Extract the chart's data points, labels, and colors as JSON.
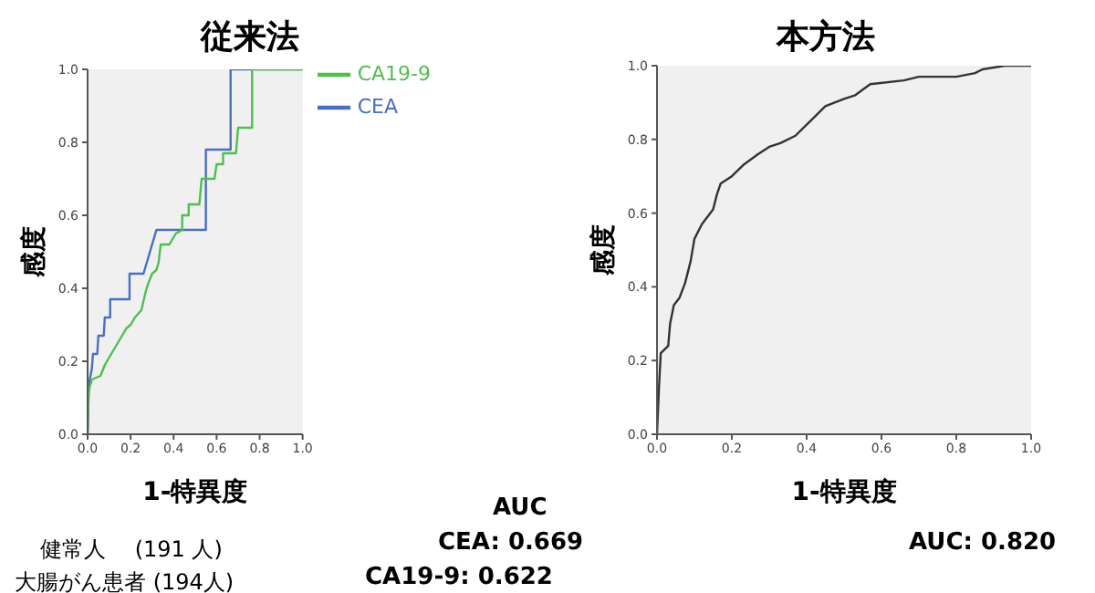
{
  "chart_data": [
    {
      "type": "line",
      "title": "従来法",
      "xlabel": "1-特異度",
      "ylabel": "感度",
      "xlim": [
        0,
        1
      ],
      "ylim": [
        0,
        1
      ],
      "xticks": [
        {
          "value": 0,
          "label": "0.0"
        },
        {
          "value": 0.2,
          "label": "0.2"
        },
        {
          "value": 0.4,
          "label": "0.4"
        },
        {
          "value": 0.6,
          "label": "0.6"
        },
        {
          "value": 0.8,
          "label": "0.8"
        },
        {
          "value": 1,
          "label": "1.0"
        }
      ],
      "yticks": [
        {
          "value": 0,
          "label": "0.0"
        },
        {
          "value": 0.2,
          "label": "0.2"
        },
        {
          "value": 0.4,
          "label": "0.4"
        },
        {
          "value": 0.6,
          "label": "0.6"
        },
        {
          "value": 0.8,
          "label": "0.8"
        },
        {
          "value": 1,
          "label": "1.0"
        }
      ],
      "grid": false,
      "legend": "top right",
      "marker": "none",
      "line_style": "solid",
      "series": [
        {
          "name": "CEA",
          "color": "#4a6fbf",
          "x": [
            0,
            0.005,
            0.01,
            0.02,
            0.025,
            0.045,
            0.05,
            0.075,
            0.08,
            0.105,
            0.105,
            0.195,
            0.195,
            0.26,
            0.32,
            0.55,
            0.55,
            0.665,
            0.665,
            1
          ],
          "values": [
            0,
            0.13,
            0.15,
            0.18,
            0.22,
            0.22,
            0.27,
            0.27,
            0.32,
            0.32,
            0.37,
            0.37,
            0.44,
            0.44,
            0.56,
            0.56,
            0.78,
            0.78,
            1,
            1
          ]
        },
        {
          "name": "CA19-9",
          "color": "#4fbf4f",
          "x": [
            0,
            0.005,
            0.01,
            0.02,
            0.06,
            0.08,
            0.1,
            0.13,
            0.15,
            0.18,
            0.2,
            0.22,
            0.25,
            0.27,
            0.28,
            0.3,
            0.32,
            0.33,
            0.34,
            0.38,
            0.41,
            0.44,
            0.44,
            0.47,
            0.47,
            0.52,
            0.53,
            0.59,
            0.6,
            0.63,
            0.63,
            0.69,
            0.7,
            0.765,
            0.765,
            1
          ],
          "values": [
            0,
            0.11,
            0.13,
            0.15,
            0.16,
            0.19,
            0.21,
            0.24,
            0.26,
            0.29,
            0.3,
            0.32,
            0.34,
            0.39,
            0.41,
            0.44,
            0.45,
            0.47,
            0.52,
            0.52,
            0.55,
            0.56,
            0.6,
            0.6,
            0.63,
            0.63,
            0.7,
            0.7,
            0.74,
            0.74,
            0.77,
            0.77,
            0.84,
            0.84,
            1,
            1
          ]
        }
      ],
      "annotations": [
        "健常人　 (191 人)",
        "大腸がん患者 (194人)",
        "AUC",
        "CEA: 0.669",
        "CA19-9: 0.622"
      ]
    },
    {
      "type": "line",
      "title": "本方法",
      "xlabel": "1-特異度",
      "ylabel": "感度",
      "xlim": [
        0,
        1
      ],
      "ylim": [
        0,
        1
      ],
      "xticks": [
        {
          "value": 0,
          "label": "0.0"
        },
        {
          "value": 0.2,
          "label": "0.2"
        },
        {
          "value": 0.4,
          "label": "0.4"
        },
        {
          "value": 0.6,
          "label": "0.6"
        },
        {
          "value": 0.8,
          "label": "0.8"
        },
        {
          "value": 1,
          "label": "1.0"
        }
      ],
      "yticks": [
        {
          "value": 0,
          "label": "0.0"
        },
        {
          "value": 0.2,
          "label": "0.2"
        },
        {
          "value": 0.4,
          "label": "0.4"
        },
        {
          "value": 0.6,
          "label": "0.6"
        },
        {
          "value": 0.8,
          "label": "0.8"
        },
        {
          "value": 1,
          "label": "1.0"
        }
      ],
      "grid": false,
      "legend": false,
      "marker": "none",
      "line_style": "solid",
      "series": [
        {
          "color": "#333333",
          "x": [
            0,
            0.005,
            0.01,
            0.03,
            0.035,
            0.045,
            0.06,
            0.075,
            0.09,
            0.1,
            0.12,
            0.15,
            0.16,
            0.17,
            0.2,
            0.23,
            0.27,
            0.3,
            0.33,
            0.37,
            0.41,
            0.45,
            0.5,
            0.53,
            0.57,
            0.66,
            0.7,
            0.8,
            0.85,
            0.87,
            0.93,
            1
          ],
          "values": [
            0,
            0.12,
            0.22,
            0.24,
            0.3,
            0.35,
            0.37,
            0.41,
            0.47,
            0.53,
            0.57,
            0.61,
            0.65,
            0.68,
            0.7,
            0.73,
            0.76,
            0.78,
            0.79,
            0.81,
            0.85,
            0.89,
            0.91,
            0.92,
            0.95,
            0.96,
            0.97,
            0.97,
            0.98,
            0.99,
            1,
            1
          ]
        }
      ],
      "annotations": [
        "AUC: 0.820"
      ]
    }
  ]
}
